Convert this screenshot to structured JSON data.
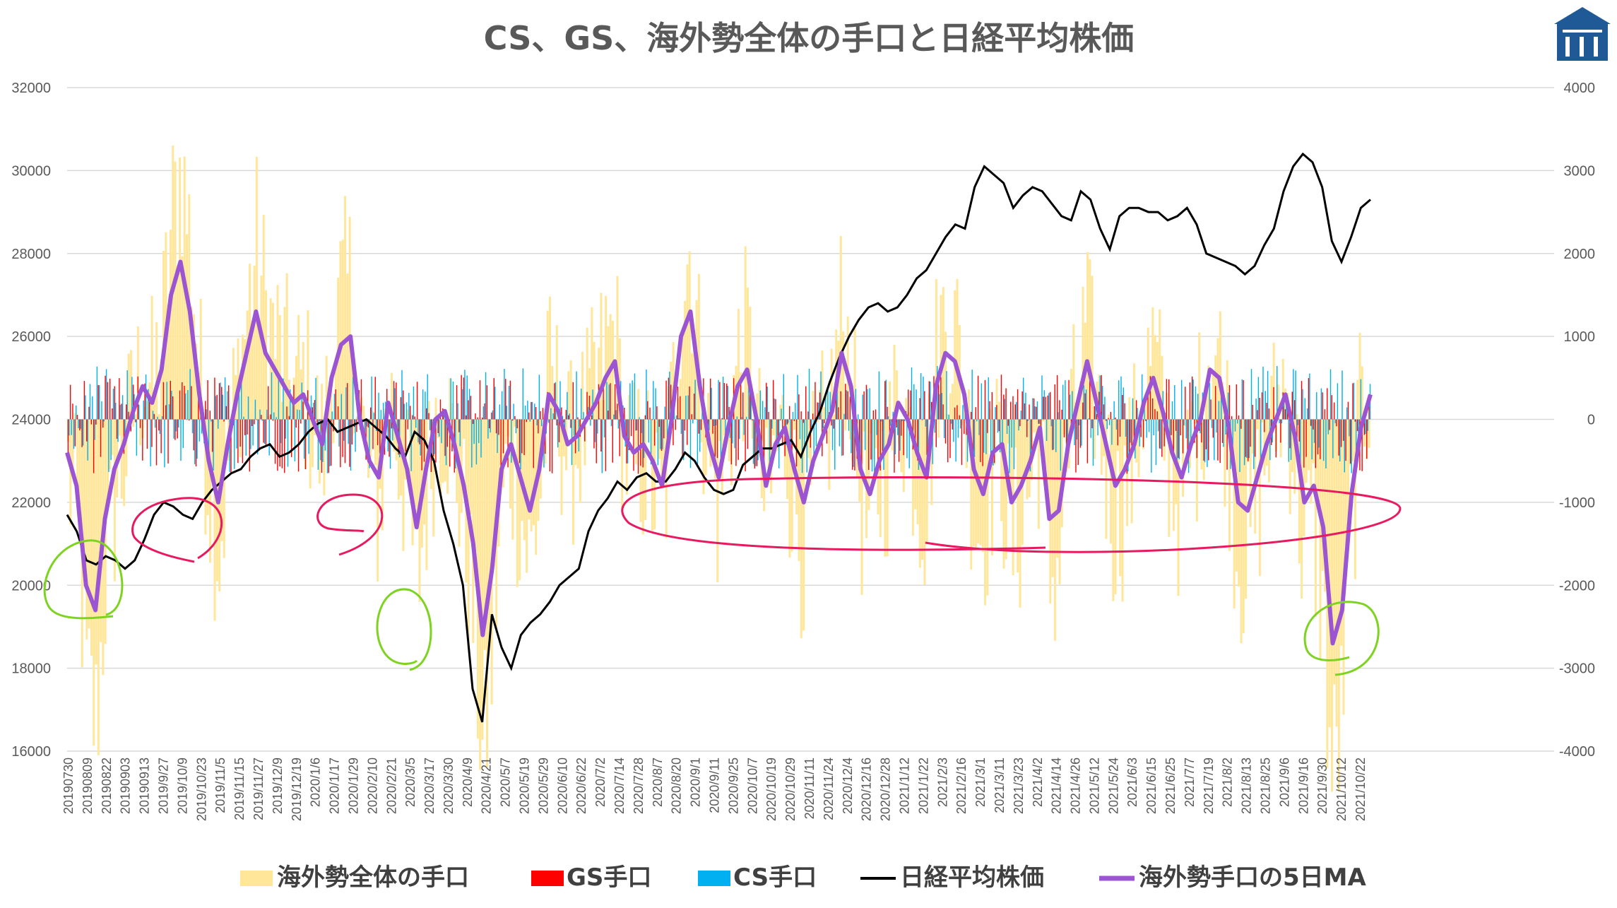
{
  "title": "CS、GS、海外勢全体の手口と日経平均株価",
  "colors": {
    "foreign_total": "#FFE699",
    "gs": "#FF0000",
    "cs": "#00B0F0",
    "nikkei": "#000000",
    "ma5": "#9B55D2",
    "annotation_green": "#7ED321",
    "annotation_pink": "#E8195F",
    "logo": "#1F5A96"
  },
  "chart_data": {
    "type": "bar+line",
    "title": "CS、GS、海外勢全体の手口と日経平均株価",
    "y_left": {
      "range": [
        16000,
        32000
      ],
      "ticks": [
        "16000",
        "18000",
        "20000",
        "22000",
        "24000",
        "26000",
        "28000",
        "30000",
        "32000"
      ]
    },
    "y_right": {
      "range": [
        -4000,
        4000
      ],
      "ticks": [
        "-4000",
        "-3000",
        "-2000",
        "-1000",
        "0",
        "1000",
        "2000",
        "3000",
        "4000"
      ]
    },
    "x_tick_labels": [
      "20190730",
      "20190809",
      "20190822",
      "20190903",
      "20190913",
      "2019/9/27",
      "2019/10/9",
      "2019/10/23",
      "2019/11/5",
      "2019/11/15",
      "2019/11/27",
      "2019/12/9",
      "2019/12/19",
      "2020/1/6",
      "2020/1/17",
      "2020/1/29",
      "2020/2/10",
      "2020/2/21",
      "2020/3/5",
      "2020/3/17",
      "2020/3/30",
      "2020/4/9",
      "2020/4/21",
      "2020/5/7",
      "2020/5/19",
      "2020/5/29",
      "2020/6/10",
      "2020/6/22",
      "2020/7/2",
      "2020/7/14",
      "2020/7/28",
      "2020/8/7",
      "2020/8/20",
      "2020/9/1",
      "2020/9/11",
      "2020/9/25",
      "2020/10/7",
      "2020/10/19",
      "2020/10/29",
      "2020/11/11",
      "2020/11/24",
      "2020/12/4",
      "2020/12/16",
      "2020/12/28",
      "2021/1/12",
      "2021/1/22",
      "2021/2/3",
      "2021/2/16",
      "2021/3/1",
      "2021/3/11",
      "2021/3/23",
      "2021/4/2",
      "2021/4/14",
      "2021/4/26",
      "2021/5/12",
      "2021/5/24",
      "2021/6/3",
      "2021/6/15",
      "2021/6/25",
      "2021/7/7",
      "2021/7/19",
      "2021/8/2",
      "2021/8/13",
      "2021/8/25",
      "2021/9/6",
      "2021/9/16",
      "2021/9/30",
      "2021/10/12",
      "2021/10/22"
    ],
    "legend": [
      "海外勢全体の手口",
      "GS手口",
      "CS手口",
      "日経平均株価",
      "海外勢手口の5日MA"
    ],
    "series": [
      {
        "name": "日経平均株価",
        "axis": "left",
        "kind": "line",
        "values": [
          21700,
          21300,
          20600,
          20500,
          20700,
          20600,
          20400,
          20600,
          21100,
          21700,
          22000,
          21900,
          21700,
          21600,
          22000,
          22300,
          22500,
          22700,
          22800,
          23100,
          23300,
          23400,
          23100,
          23200,
          23400,
          23700,
          23900,
          24000,
          23700,
          23800,
          23900,
          24000,
          23800,
          23600,
          23300,
          23100,
          23700,
          23500,
          23000,
          21800,
          21000,
          20000,
          17500,
          16700,
          19300,
          18500,
          18000,
          18800,
          19100,
          19300,
          19600,
          20000,
          20200,
          20400,
          21300,
          21800,
          22100,
          22500,
          22300,
          22600,
          22700,
          22500,
          22500,
          22800,
          23200,
          23000,
          22600,
          22300,
          22200,
          22300,
          22900,
          23100,
          23300,
          23300,
          23400,
          23500,
          23100,
          23700,
          24200,
          24900,
          25500,
          26000,
          26400,
          26700,
          26800,
          26600,
          26700,
          27000,
          27400,
          27600,
          28000,
          28400,
          28700,
          28600,
          29600,
          30100,
          29900,
          29700,
          29100,
          29400,
          29600,
          29500,
          29200,
          28900,
          28800,
          29500,
          29300,
          28600,
          28100,
          28900,
          29100,
          29100,
          29000,
          29000,
          28800,
          28900,
          29100,
          28700,
          28000,
          27900,
          27800,
          27700,
          27500,
          27700,
          28200,
          28600,
          29500,
          30100,
          30400,
          30200,
          29600,
          28300,
          27800,
          28400,
          29100,
          29300
        ],
        "idx_map": "0..135 evenly across x"
      },
      {
        "name": "海外勢手口の5日MA",
        "axis": "right",
        "kind": "line",
        "values": [
          -400,
          -800,
          -2000,
          -2300,
          -1200,
          -600,
          -300,
          100,
          400,
          200,
          600,
          1500,
          1900,
          1300,
          300,
          -500,
          -1000,
          -300,
          300,
          800,
          1300,
          800,
          600,
          400,
          200,
          300,
          0,
          -300,
          500,
          900,
          1000,
          0,
          -500,
          -700,
          200,
          -200,
          -600,
          -1300,
          -600,
          0,
          100,
          -300,
          -800,
          -1500,
          -2600,
          -1800,
          -600,
          -300,
          -700,
          -1100,
          -600,
          300,
          100,
          -300,
          -200,
          0,
          200,
          500,
          700,
          -200,
          -400,
          -300,
          -500,
          -800,
          0,
          1000,
          1300,
          400,
          -300,
          -700,
          -100,
          400,
          600,
          0,
          -800,
          -300,
          -100,
          -600,
          -1000,
          -500,
          -200,
          100,
          800,
          400,
          -600,
          -900,
          -500,
          -300,
          200,
          0,
          -400,
          -700,
          400,
          800,
          700,
          300,
          -600,
          -900,
          -400,
          -300,
          -1000,
          -800,
          -500,
          -100,
          -1200,
          -1100,
          -300,
          200,
          700,
          200,
          -300,
          -800,
          -600,
          -300,
          200,
          500,
          100,
          -400,
          -700,
          -300,
          0,
          600,
          500,
          -100,
          -1000,
          -1100,
          -700,
          -300,
          0,
          300,
          -200,
          -1000,
          -800,
          -1300,
          -2700,
          -2300,
          -900,
          -100,
          300
        ],
        "idx_map": "0..135 evenly across x"
      }
    ],
    "bars_note": "Dense daily bars: 海外勢全体の手口 (light yellow), GS手口 (red), CS手口 (cyan), plotted on right axis around 0."
  },
  "annotations": {
    "green_circles": 3,
    "pink_ellipses": 3
  }
}
